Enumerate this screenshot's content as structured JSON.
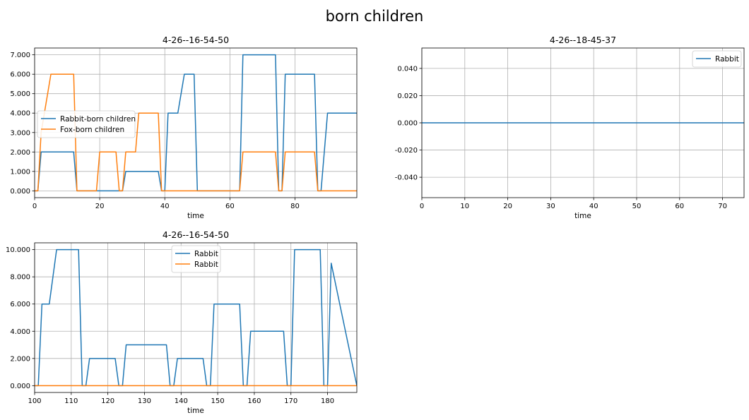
{
  "figure": {
    "title": "born children"
  },
  "colors": {
    "blue": "#1f77b4",
    "orange": "#ff7f0e",
    "grid": "#b0b0b0"
  },
  "chart_data": [
    {
      "type": "line",
      "title": "4-26--16-54-50",
      "xlabel": "time",
      "ylabel": "",
      "xlim": [
        0,
        99
      ],
      "ylim": [
        -0.35,
        7.35
      ],
      "xticks": [
        0,
        20,
        40,
        60,
        80
      ],
      "yticks": [
        0,
        1,
        2,
        3,
        4,
        5,
        6,
        7
      ],
      "ytick_labels": [
        "0.000",
        "1.000",
        "2.000",
        "3.000",
        "4.000",
        "5.000",
        "6.000",
        "7.000"
      ],
      "grid": true,
      "legend": "center-left",
      "series": [
        {
          "name": "Rabbit-born children",
          "color": "blue",
          "x": [
            0,
            1,
            2,
            12,
            13,
            26,
            27,
            28,
            38,
            39,
            40,
            41,
            43,
            44,
            46,
            49,
            50,
            63,
            64,
            74,
            75,
            76,
            77,
            86,
            87,
            88,
            90,
            99
          ],
          "y": [
            0,
            0,
            2,
            2,
            0,
            0,
            0,
            1,
            1,
            0,
            0,
            4,
            4,
            4,
            6,
            6,
            0,
            0,
            7,
            7,
            0,
            0,
            6,
            6,
            0,
            0,
            4,
            4
          ]
        },
        {
          "name": "Fox-born children",
          "color": "orange",
          "x": [
            0,
            1,
            2,
            5,
            12,
            13,
            19,
            20,
            25,
            26,
            27,
            28,
            31,
            32,
            38,
            39,
            63,
            64,
            74,
            75,
            76,
            77,
            86,
            87,
            99
          ],
          "y": [
            0,
            0,
            3,
            6,
            6,
            0,
            0,
            2,
            2,
            0,
            0,
            2,
            2,
            4,
            4,
            0,
            0,
            2,
            2,
            0,
            0,
            2,
            2,
            0,
            0
          ]
        }
      ]
    },
    {
      "type": "line",
      "title": "4-26--18-45-37",
      "xlabel": "time",
      "ylabel": "",
      "xlim": [
        0,
        75
      ],
      "ylim": [
        -0.055,
        0.055
      ],
      "xticks": [
        0,
        10,
        20,
        30,
        40,
        50,
        60,
        70
      ],
      "yticks": [
        -0.04,
        -0.02,
        0,
        0.02,
        0.04
      ],
      "ytick_labels": [
        "-0.040",
        "-0.020",
        "0.000",
        "0.020",
        "0.040"
      ],
      "grid": true,
      "legend": "top-right",
      "series": [
        {
          "name": "Rabbit",
          "color": "blue",
          "x": [
            0,
            75
          ],
          "y": [
            0,
            0
          ]
        }
      ]
    },
    {
      "type": "line",
      "title": "4-26--16-54-50",
      "xlabel": "time",
      "ylabel": "",
      "xlim": [
        100,
        188
      ],
      "ylim": [
        -0.5,
        10.5
      ],
      "xticks": [
        100,
        110,
        120,
        130,
        140,
        150,
        160,
        170,
        180
      ],
      "yticks": [
        0,
        2,
        4,
        6,
        8,
        10
      ],
      "ytick_labels": [
        "0.000",
        "2.000",
        "4.000",
        "6.000",
        "8.000",
        "10.000"
      ],
      "grid": true,
      "legend": "top-center",
      "series": [
        {
          "name": "Rabbit",
          "color": "blue",
          "x": [
            100,
            101,
            102,
            104,
            106,
            112,
            113,
            114,
            115,
            122,
            123,
            124,
            125,
            136,
            137,
            138,
            139,
            146,
            147,
            148,
            149,
            156,
            157,
            158,
            159,
            168,
            169,
            170,
            171,
            178,
            179,
            180,
            181,
            188
          ],
          "y": [
            0,
            0,
            6,
            6,
            10,
            10,
            0,
            0,
            2,
            2,
            0,
            0,
            3,
            3,
            0,
            0,
            2,
            2,
            0,
            0,
            6,
            6,
            0,
            0,
            4,
            4,
            0,
            0,
            10,
            10,
            0,
            0,
            9,
            0
          ]
        },
        {
          "name": "Rabbit",
          "color": "orange",
          "x": [
            100,
            188
          ],
          "y": [
            0,
            0
          ]
        }
      ]
    }
  ]
}
